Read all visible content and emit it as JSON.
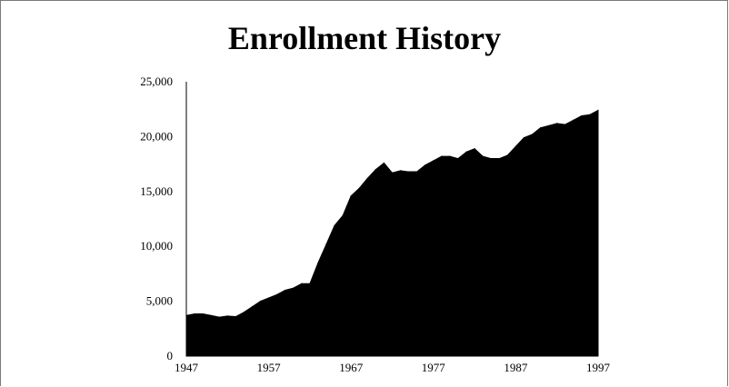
{
  "chart_data": {
    "type": "area",
    "title": "Enrollment History",
    "xlabel": "",
    "ylabel": "",
    "xlim": [
      1947,
      1997
    ],
    "ylim": [
      0,
      25000
    ],
    "x_ticks": [
      "1947",
      "1957",
      "1967",
      "1977",
      "1987",
      "1997"
    ],
    "y_ticks": [
      "0",
      "5,000",
      "10,000",
      "15,000",
      "20,000",
      "25,000"
    ],
    "grid": false,
    "legend": "none",
    "series": [
      {
        "color": "#000000",
        "x": [
          1947,
          1948,
          1949,
          1950,
          1951,
          1952,
          1953,
          1954,
          1955,
          1956,
          1957,
          1958,
          1959,
          1960,
          1961,
          1962,
          1963,
          1964,
          1965,
          1966,
          1967,
          1968,
          1969,
          1970,
          1971,
          1972,
          1973,
          1974,
          1975,
          1976,
          1977,
          1978,
          1979,
          1980,
          1981,
          1982,
          1983,
          1984,
          1985,
          1986,
          1987,
          1988,
          1989,
          1990,
          1991,
          1992,
          1993,
          1994,
          1995,
          1996,
          1997
        ],
        "y": [
          3700,
          3850,
          3850,
          3700,
          3550,
          3650,
          3600,
          4000,
          4500,
          5000,
          5300,
          5600,
          6000,
          6200,
          6600,
          6600,
          8500,
          10200,
          11900,
          12800,
          14600,
          15300,
          16200,
          17000,
          17600,
          16700,
          16900,
          16800,
          16800,
          17400,
          17800,
          18200,
          18200,
          18000,
          18600,
          18900,
          18200,
          18000,
          18000,
          18300,
          19100,
          19900,
          20200,
          20800,
          21000,
          21200,
          21100,
          21500,
          21900,
          22000,
          22400
        ]
      }
    ]
  }
}
